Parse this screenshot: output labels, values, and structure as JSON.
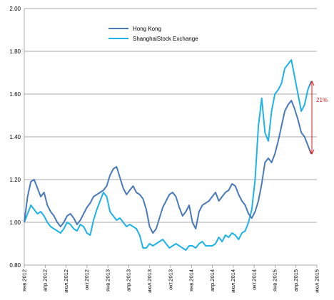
{
  "chart_data": {
    "type": "line",
    "title": "",
    "xlabel": "",
    "ylabel": "",
    "ylim": [
      0.8,
      2.0
    ],
    "y_ticks": [
      "0.80",
      "1.00",
      "1.20",
      "1.40",
      "1.60",
      "1.80",
      "2.00"
    ],
    "x_tick_labels": [
      "янв.2012",
      "апр.2012",
      "июл.2012",
      "окт.2012",
      "янв.2013",
      "апр.2013",
      "июл.2013",
      "окт.2013",
      "янв.2014",
      "апр.2014",
      "июл.2014",
      "окт.2014",
      "янв.2015",
      "апр.2015",
      "июл.2015"
    ],
    "grid": "horizontal",
    "legend_position": "top-left",
    "series": [
      {
        "name": "Hong Kong",
        "color": "#4a7ab8",
        "values": [
          1.0,
          1.12,
          1.19,
          1.2,
          1.16,
          1.12,
          1.14,
          1.08,
          1.05,
          1.03,
          1.0,
          0.98,
          1.0,
          1.03,
          1.04,
          1.02,
          0.99,
          1.01,
          1.04,
          1.07,
          1.09,
          1.12,
          1.13,
          1.14,
          1.15,
          1.17,
          1.22,
          1.25,
          1.26,
          1.21,
          1.16,
          1.13,
          1.15,
          1.17,
          1.14,
          1.13,
          1.11,
          1.06,
          0.98,
          0.95,
          0.97,
          1.02,
          1.07,
          1.1,
          1.13,
          1.14,
          1.12,
          1.07,
          1.03,
          1.05,
          1.08,
          1.0,
          0.97,
          1.05,
          1.08,
          1.09,
          1.1,
          1.12,
          1.14,
          1.1,
          1.12,
          1.14,
          1.15,
          1.18,
          1.17,
          1.13,
          1.1,
          1.08,
          1.04,
          1.02,
          1.05,
          1.1,
          1.18,
          1.28,
          1.3,
          1.28,
          1.32,
          1.38,
          1.45,
          1.52,
          1.55,
          1.57,
          1.53,
          1.48,
          1.42,
          1.4,
          1.36,
          1.32
        ]
      },
      {
        "name": "ShanghaiStock Exchange",
        "color": "#1fb3e8",
        "values": [
          1.0,
          1.04,
          1.08,
          1.06,
          1.04,
          1.05,
          1.03,
          1.0,
          0.98,
          0.97,
          0.96,
          0.95,
          0.97,
          1.0,
          0.99,
          0.97,
          0.96,
          0.99,
          0.98,
          0.95,
          0.94,
          1.01,
          1.06,
          1.1,
          1.14,
          1.12,
          1.05,
          1.03,
          1.01,
          1.02,
          1.0,
          0.98,
          0.99,
          0.98,
          0.97,
          0.94,
          0.88,
          0.88,
          0.9,
          0.89,
          0.9,
          0.91,
          0.92,
          0.9,
          0.88,
          0.89,
          0.9,
          0.89,
          0.88,
          0.87,
          0.89,
          0.89,
          0.88,
          0.9,
          0.91,
          0.89,
          0.89,
          0.89,
          0.9,
          0.93,
          0.91,
          0.94,
          0.93,
          0.95,
          0.94,
          0.92,
          0.95,
          0.96,
          1.0,
          1.06,
          1.2,
          1.45,
          1.58,
          1.42,
          1.38,
          1.52,
          1.6,
          1.62,
          1.65,
          1.72,
          1.74,
          1.76,
          1.68,
          1.6,
          1.52,
          1.55,
          1.62,
          1.66
        ]
      }
    ],
    "annotation": {
      "label": "21%",
      "from_value": 1.66,
      "to_value": 1.32,
      "color": "#e31a1c"
    }
  }
}
